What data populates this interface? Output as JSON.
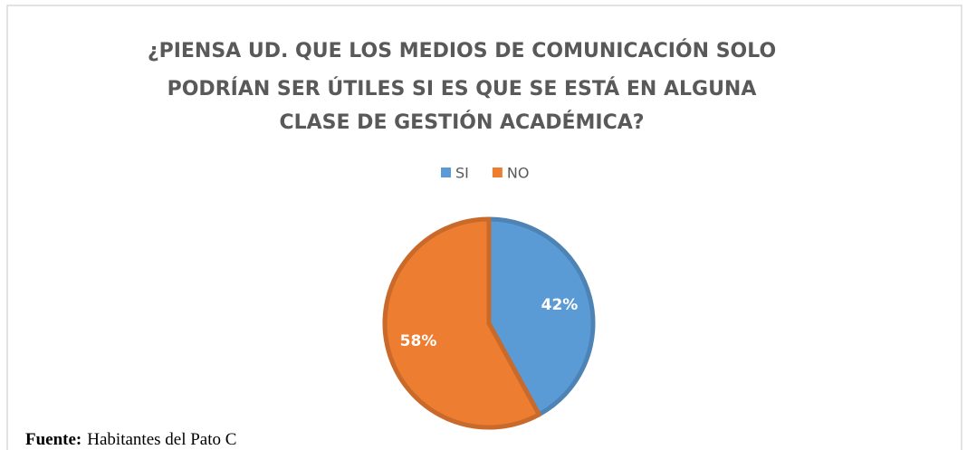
{
  "chart_data": {
    "type": "pie",
    "title": [
      "¿PIENSA UD. QUE LOS MEDIOS DE COMUNICACIÓN SOLO",
      "PODRÍAN SER ÚTILES SI ES QUE SE ESTÁ EN ALGUNA",
      "CLASE DE GESTIÓN ACADÉMICA?"
    ],
    "categories": [
      "SI",
      "NO"
    ],
    "values": [
      42,
      58
    ],
    "value_labels": [
      "42%",
      "58%"
    ],
    "colors": [
      "#5b9bd5",
      "#ed7d31"
    ],
    "legend": "top"
  },
  "footer": {
    "label": "Fuente:",
    "text": "Habitantes del Pato C"
  }
}
